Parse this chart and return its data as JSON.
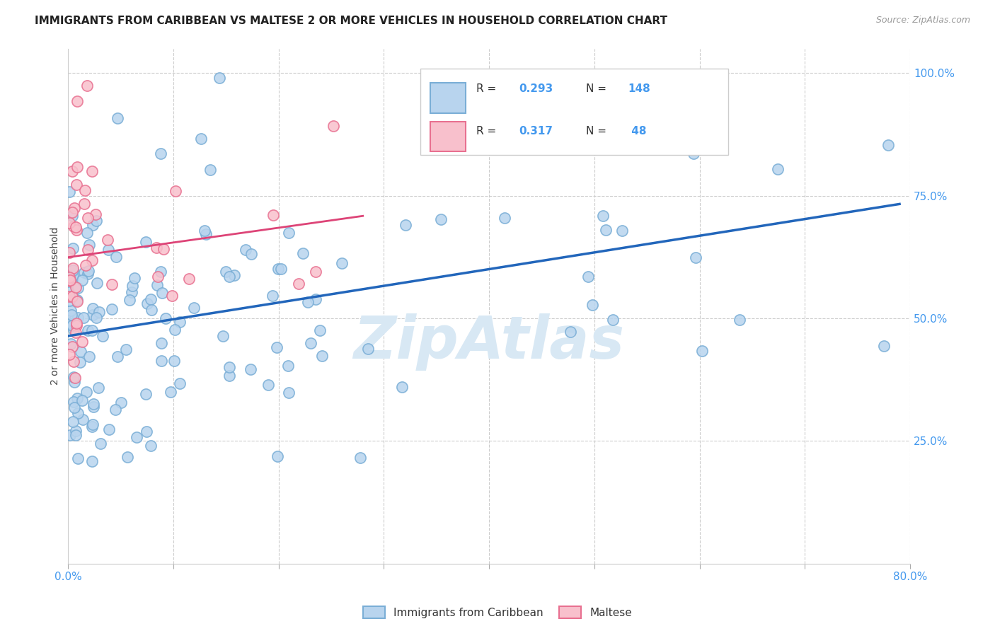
{
  "title": "IMMIGRANTS FROM CARIBBEAN VS MALTESE 2 OR MORE VEHICLES IN HOUSEHOLD CORRELATION CHART",
  "source": "Source: ZipAtlas.com",
  "ylabel_label": "2 or more Vehicles in Household",
  "x_min": 0.0,
  "x_max": 0.8,
  "y_min": 0.0,
  "y_max": 1.05,
  "caribbean_dot_color": "#b8d4ee",
  "caribbean_edge_color": "#7aaed6",
  "caribbean_line_color": "#2266bb",
  "maltese_dot_color": "#f8c0cc",
  "maltese_edge_color": "#e87090",
  "maltese_line_color": "#dd4477",
  "legend_r1": "0.293",
  "legend_n1": "148",
  "legend_r2": "0.317",
  "legend_n2": " 48",
  "legend_label1": "Immigrants from Caribbean",
  "legend_label2": "Maltese",
  "watermark": "ZipAtlas",
  "grid_color": "#cccccc",
  "grid_style": "--",
  "background_color": "#ffffff",
  "title_fontsize": 11,
  "tick_color": "#4499ee",
  "tick_fontsize": 11,
  "watermark_color": "#d8e8f4",
  "watermark_fontsize": 60,
  "n_caribbean": 148,
  "n_maltese": 48
}
